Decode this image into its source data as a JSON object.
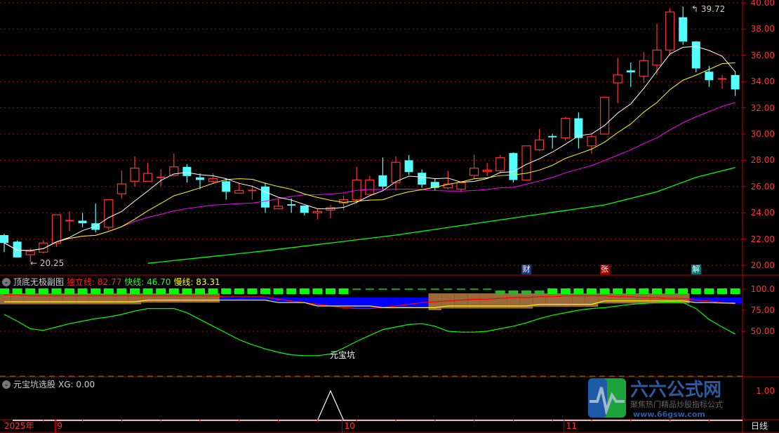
{
  "main": {
    "price_axis": [
      "40.00",
      "38.00",
      "36.00",
      "34.00",
      "32.00",
      "30.00",
      "28.00",
      "26.00",
      "24.00",
      "22.00",
      "20.00"
    ],
    "high_label": "39.72",
    "low_label": "20.25",
    "markers": [
      {
        "text": "财",
        "color": "#1a3a7a",
        "index": 40
      },
      {
        "text": "张",
        "color": "#a00000",
        "index": 46
      },
      {
        "text": "解",
        "color": "#007878",
        "index": 53
      }
    ],
    "colors": {
      "up": "#ff3232",
      "down": "#54ffff",
      "ma5": "#ffffff",
      "ma10": "#ffff00",
      "ma20": "#ff00ff",
      "ma_long": "#00ff00",
      "grid": "#b00000"
    }
  },
  "sub": {
    "title": "顶底无极副图",
    "independent_label": "独立线: 82.77",
    "fast_label": "快线: 46.70",
    "slow_label": "慢线: 83.31",
    "axis": [
      "100.0",
      "75.00",
      "50.00"
    ],
    "annotation": "元宝坑"
  },
  "xg": {
    "title": "元宝坑选股",
    "value_label": "XG: 0.00",
    "axis": "1.00"
  },
  "time_axis": {
    "year": "2025年",
    "months": [
      {
        "label": "9",
        "index": 4
      },
      {
        "label": "10",
        "index": 26
      },
      {
        "label": "11",
        "index": 43
      }
    ],
    "period": "日线"
  },
  "logo": {
    "name": "六六公式网",
    "slogan": "聚焦热门精品炒股指标公式",
    "url": "www.66gsw.com"
  },
  "chart_data": [
    {
      "type": "candlestick",
      "ylim": [
        20,
        40
      ],
      "grid": true,
      "ohlc": [
        [
          22.3,
          22.4,
          21.0,
          21.7
        ],
        [
          21.8,
          21.9,
          20.6,
          20.6
        ],
        [
          20.8,
          21.3,
          20.25,
          21.07
        ],
        [
          21.0,
          21.9,
          20.9,
          21.7
        ],
        [
          21.7,
          23.85,
          21.4,
          23.85
        ],
        [
          23.4,
          24.1,
          22.6,
          23.4
        ],
        [
          23.4,
          24.0,
          22.9,
          23.2
        ],
        [
          23.2,
          24.7,
          22.5,
          22.7
        ],
        [
          22.9,
          25.0,
          22.7,
          25.0
        ],
        [
          25.45,
          27.2,
          25.1,
          26.2
        ],
        [
          26.4,
          28.3,
          26.0,
          27.4
        ],
        [
          26.4,
          27.8,
          26.4,
          27.0
        ],
        [
          26.7,
          27.3,
          26.0,
          26.7
        ],
        [
          26.85,
          28.5,
          26.8,
          27.5
        ],
        [
          27.5,
          27.7,
          26.3,
          26.8
        ],
        [
          26.7,
          27.0,
          25.8,
          26.5
        ],
        [
          26.4,
          27.0,
          26.2,
          26.6
        ],
        [
          26.4,
          26.6,
          25.0,
          25.6
        ],
        [
          25.5,
          26.3,
          25.5,
          25.7
        ],
        [
          25.7,
          26.1,
          25.0,
          25.7
        ],
        [
          26.0,
          26.3,
          24.0,
          24.4
        ],
        [
          24.3,
          25.1,
          24.3,
          24.5
        ],
        [
          24.65,
          25.1,
          24.0,
          24.55
        ],
        [
          24.55,
          24.55,
          23.8,
          24.0
        ],
        [
          24.0,
          24.3,
          23.5,
          24.1
        ],
        [
          24.2,
          24.6,
          23.6,
          24.4
        ],
        [
          24.75,
          25.3,
          24.2,
          25.0
        ],
        [
          25.0,
          27.5,
          24.7,
          26.5
        ],
        [
          25.4,
          26.8,
          25.4,
          26.5
        ],
        [
          26.85,
          28.2,
          25.8,
          26.0
        ],
        [
          26.3,
          28.3,
          25.7,
          27.85
        ],
        [
          28.0,
          28.4,
          26.9,
          27.1
        ],
        [
          27.05,
          27.3,
          25.9,
          26.15
        ],
        [
          26.35,
          26.6,
          25.7,
          25.9
        ],
        [
          25.9,
          27.2,
          25.8,
          26.2
        ],
        [
          25.8,
          26.4,
          25.6,
          26.3
        ],
        [
          26.85,
          28.4,
          26.6,
          27.4
        ],
        [
          27.15,
          27.8,
          26.8,
          27.25
        ],
        [
          27.2,
          28.4,
          27.0,
          28.2
        ],
        [
          28.55,
          28.6,
          26.3,
          26.5
        ],
        [
          26.5,
          29.1,
          26.5,
          29.1
        ],
        [
          28.8,
          30.4,
          28.7,
          29.55
        ],
        [
          29.8,
          30.0,
          28.9,
          29.8
        ],
        [
          29.7,
          31.3,
          29.5,
          31.2
        ],
        [
          31.2,
          31.65,
          28.9,
          29.7
        ],
        [
          29.1,
          30.0,
          28.5,
          29.8
        ],
        [
          30.0,
          32.8,
          30.0,
          32.8
        ],
        [
          33.9,
          35.8,
          32.35,
          34.5
        ],
        [
          34.85,
          35.45,
          33.6,
          34.7
        ],
        [
          34.4,
          36.25,
          33.9,
          35.6
        ],
        [
          35.25,
          38.4,
          34.5,
          36.4
        ],
        [
          36.4,
          39.6,
          36.0,
          39.3
        ],
        [
          38.9,
          39.72,
          36.8,
          37.05
        ],
        [
          37.05,
          37.05,
          34.7,
          35.0
        ],
        [
          34.75,
          35.2,
          33.6,
          34.1
        ],
        [
          34.2,
          34.5,
          33.45,
          34.2
        ],
        [
          34.5,
          34.8,
          32.9,
          33.4
        ]
      ],
      "ma_long_points": [
        [
          11,
          20.15
        ],
        [
          20,
          21.1
        ],
        [
          30,
          22.3
        ],
        [
          40,
          23.75
        ],
        [
          46,
          24.6
        ],
        [
          50,
          25.6
        ],
        [
          53,
          26.7
        ],
        [
          56,
          27.45
        ]
      ]
    },
    {
      "type": "line",
      "ylim": [
        0,
        100
      ],
      "series": [
        {
          "name": "独立线",
          "color": "#ff0000",
          "values": [
            93,
            93,
            92,
            92,
            92,
            92,
            92,
            92,
            92,
            92,
            92,
            92,
            92,
            92,
            92,
            92,
            92,
            91,
            91,
            91,
            91,
            88,
            86,
            84,
            82,
            80,
            78,
            77,
            77,
            78,
            80,
            82,
            84,
            85,
            86,
            87,
            88,
            88,
            89,
            90,
            90,
            91,
            91,
            92,
            92,
            92,
            92,
            91,
            91,
            90,
            90,
            89,
            89,
            87,
            86,
            84,
            82.77
          ]
        },
        {
          "name": "快线",
          "color": "#00ff00",
          "values": [
            70,
            62,
            53,
            51,
            55,
            59,
            62,
            65,
            67,
            70,
            74,
            77,
            77,
            77,
            72,
            64,
            56,
            48,
            40,
            34,
            29,
            25,
            22,
            21,
            21,
            23,
            30,
            38,
            45,
            52,
            55,
            58,
            59,
            56,
            50,
            49,
            49,
            50,
            53,
            56,
            60,
            65,
            69,
            72,
            75,
            77,
            78,
            80,
            82,
            83,
            84,
            85,
            84,
            77,
            64,
            55,
            46.7
          ]
        },
        {
          "name": "慢线",
          "color": "#ffff00",
          "values": [
            85,
            85,
            85,
            85,
            85,
            85,
            85,
            85,
            85,
            85,
            85,
            87,
            87,
            87,
            87,
            87,
            87,
            87,
            87,
            87,
            87,
            84,
            84,
            84,
            80,
            80,
            80,
            80,
            80,
            78,
            78,
            78,
            78,
            78,
            80,
            80,
            80,
            80,
            80,
            80,
            80,
            82,
            82,
            82,
            82,
            82,
            86,
            86,
            86,
            86,
            86,
            86,
            86,
            84,
            84,
            83.5,
            83.31
          ]
        }
      ],
      "zones": "BBBBBBBBBBBBBBBBBLLLLLLLLLLLLLLLLBBBBBBBBBBBBBBBBBBBBLLLL",
      "top_bars": "XXXXXXXXXXXXXXXXXXXXXXXXXXX-----------DDDDXXXXXXXXXXXXXXXX"
    },
    {
      "type": "bar",
      "ylim": [
        0,
        1
      ],
      "series": [
        {
          "name": "XG",
          "values": [
            0,
            0,
            0,
            0,
            0,
            0,
            0,
            0,
            0,
            0,
            0,
            0,
            0,
            0,
            0,
            0,
            0,
            0,
            0,
            0,
            0,
            0,
            0,
            0,
            0,
            1,
            0,
            0,
            0,
            0,
            0,
            0,
            0,
            0,
            0,
            0,
            0,
            0,
            0,
            0,
            0,
            0,
            0,
            0,
            0,
            0,
            0,
            0,
            0,
            0,
            0,
            0,
            0,
            0,
            0,
            0,
            0
          ]
        }
      ]
    }
  ]
}
